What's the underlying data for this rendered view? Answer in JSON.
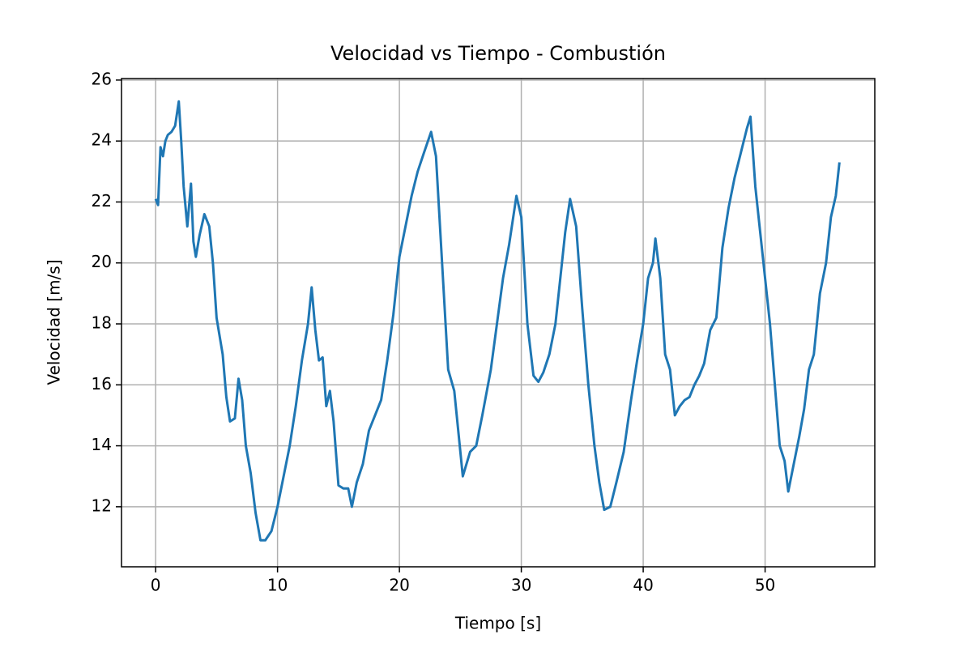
{
  "chart_data": {
    "type": "line",
    "title": "Velocidad vs Tiempo - Combustión",
    "x_label": "Tiempo [s]",
    "y_label": "Velocidad [m/s]",
    "color": "#1f77b4",
    "grid": true,
    "xlim": [
      -2.8,
      59.0
    ],
    "ylim": [
      10.03,
      26.05
    ],
    "xticks": [
      0,
      10,
      20,
      30,
      40,
      50
    ],
    "yticks": [
      12,
      14,
      16,
      18,
      20,
      22,
      24,
      26
    ],
    "x": [
      0,
      0.2,
      0.4,
      0.6,
      0.8,
      1.0,
      1.3,
      1.6,
      1.9,
      2.1,
      2.3,
      2.6,
      2.9,
      3.1,
      3.3,
      3.6,
      4.0,
      4.4,
      4.7,
      5.0,
      5.5,
      5.8,
      6.1,
      6.5,
      6.8,
      7.1,
      7.4,
      7.8,
      8.2,
      8.6,
      9.0,
      9.5,
      10.0,
      10.5,
      11.0,
      11.5,
      12.0,
      12.5,
      12.8,
      13.1,
      13.4,
      13.7,
      14.0,
      14.3,
      14.6,
      15.0,
      15.4,
      15.8,
      16.1,
      16.5,
      17.0,
      17.5,
      18.0,
      18.5,
      19.0,
      19.5,
      20.0,
      20.5,
      21.0,
      21.5,
      22.0,
      22.6,
      23.0,
      23.5,
      24.0,
      24.5,
      25.2,
      25.8,
      26.3,
      26.8,
      27.5,
      28.0,
      28.5,
      29.0,
      29.6,
      30.0,
      30.5,
      31.0,
      31.4,
      31.8,
      32.3,
      32.8,
      33.2,
      33.6,
      34.0,
      34.5,
      35.0,
      35.5,
      36.0,
      36.4,
      36.8,
      37.3,
      37.8,
      38.4,
      39.0,
      39.5,
      40.0,
      40.4,
      40.8,
      41.0,
      41.4,
      41.8,
      42.2,
      42.6,
      43.0,
      43.4,
      43.8,
      44.2,
      44.6,
      45.0,
      45.5,
      46.0,
      46.5,
      47.0,
      47.5,
      48.0,
      48.5,
      48.8,
      49.2,
      49.6,
      50.0,
      50.4,
      50.8,
      51.2,
      51.6,
      51.9,
      52.3,
      52.8,
      53.2,
      53.6,
      54.0,
      54.5,
      55.0,
      55.4,
      55.8,
      56.1
    ],
    "values": [
      22.1,
      21.9,
      23.8,
      23.5,
      24.0,
      24.2,
      24.3,
      24.5,
      25.3,
      24.0,
      22.5,
      21.2,
      22.6,
      20.7,
      20.2,
      20.9,
      21.6,
      21.2,
      20.0,
      18.2,
      17.0,
      15.6,
      14.8,
      14.9,
      16.2,
      15.5,
      14.0,
      13.1,
      11.8,
      10.9,
      10.9,
      11.2,
      12.0,
      13.0,
      14.0,
      15.3,
      16.8,
      18.0,
      19.2,
      17.8,
      16.8,
      16.9,
      15.3,
      15.8,
      14.8,
      12.7,
      12.6,
      12.6,
      12.0,
      12.8,
      13.4,
      14.5,
      15.0,
      15.5,
      16.8,
      18.3,
      20.2,
      21.2,
      22.2,
      23.0,
      23.6,
      24.3,
      23.5,
      20.0,
      16.5,
      15.8,
      13.0,
      13.8,
      14.0,
      15.0,
      16.5,
      18.0,
      19.5,
      20.6,
      22.2,
      21.5,
      18.0,
      16.3,
      16.1,
      16.4,
      17.0,
      18.0,
      19.5,
      21.0,
      22.1,
      21.2,
      18.5,
      16.0,
      14.0,
      12.8,
      11.9,
      12.0,
      12.8,
      13.8,
      15.5,
      16.8,
      18.0,
      19.5,
      20.0,
      20.8,
      19.5,
      17.0,
      16.5,
      15.0,
      15.3,
      15.5,
      15.6,
      16.0,
      16.3,
      16.7,
      17.8,
      18.2,
      20.5,
      21.8,
      22.8,
      23.6,
      24.4,
      24.8,
      22.5,
      21.0,
      19.5,
      18.0,
      16.0,
      14.0,
      13.5,
      12.5,
      13.3,
      14.3,
      15.2,
      16.5,
      17.0,
      19.0,
      20.0,
      21.5,
      22.2,
      23.3
    ]
  }
}
